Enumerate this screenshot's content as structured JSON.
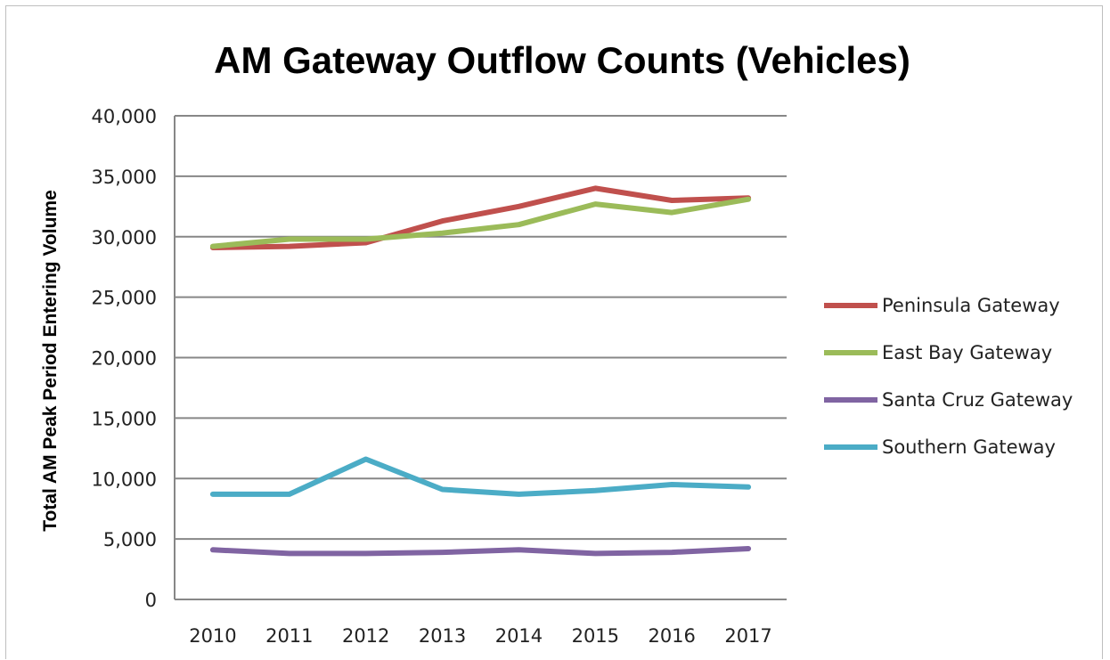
{
  "chart_data": {
    "type": "line",
    "title": "AM Gateway Outflow Counts (Vehicles)",
    "xlabel": "",
    "ylabel": "Total AM Peak Period Entering Volume",
    "ylim": [
      0,
      40000
    ],
    "y_ticks": [
      "0",
      "5,000",
      "10,000",
      "15,000",
      "20,000",
      "25,000",
      "30,000",
      "35,000",
      "40,000"
    ],
    "y_tick_values": [
      0,
      5000,
      10000,
      15000,
      20000,
      25000,
      30000,
      35000,
      40000
    ],
    "categories": [
      "2010",
      "2011",
      "2012",
      "2013",
      "2014",
      "2015",
      "2016",
      "2017"
    ],
    "grid": "horizontal",
    "legend_position": "right",
    "series": [
      {
        "name": "Peninsula Gateway",
        "color": "#c0504d",
        "values": [
          29100,
          29200,
          29500,
          31300,
          32500,
          34000,
          33000,
          33200
        ]
      },
      {
        "name": "East Bay Gateway",
        "color": "#9bbb59",
        "values": [
          29200,
          29800,
          29800,
          30300,
          31000,
          32700,
          32000,
          33100
        ]
      },
      {
        "name": "Santa Cruz Gateway",
        "color": "#8064a2",
        "values": [
          4100,
          3800,
          3800,
          3900,
          4100,
          3800,
          3900,
          4200
        ]
      },
      {
        "name": "Southern Gateway",
        "color": "#4bacc6",
        "values": [
          8700,
          8700,
          11600,
          9100,
          8700,
          9000,
          9500,
          9300
        ]
      }
    ]
  }
}
